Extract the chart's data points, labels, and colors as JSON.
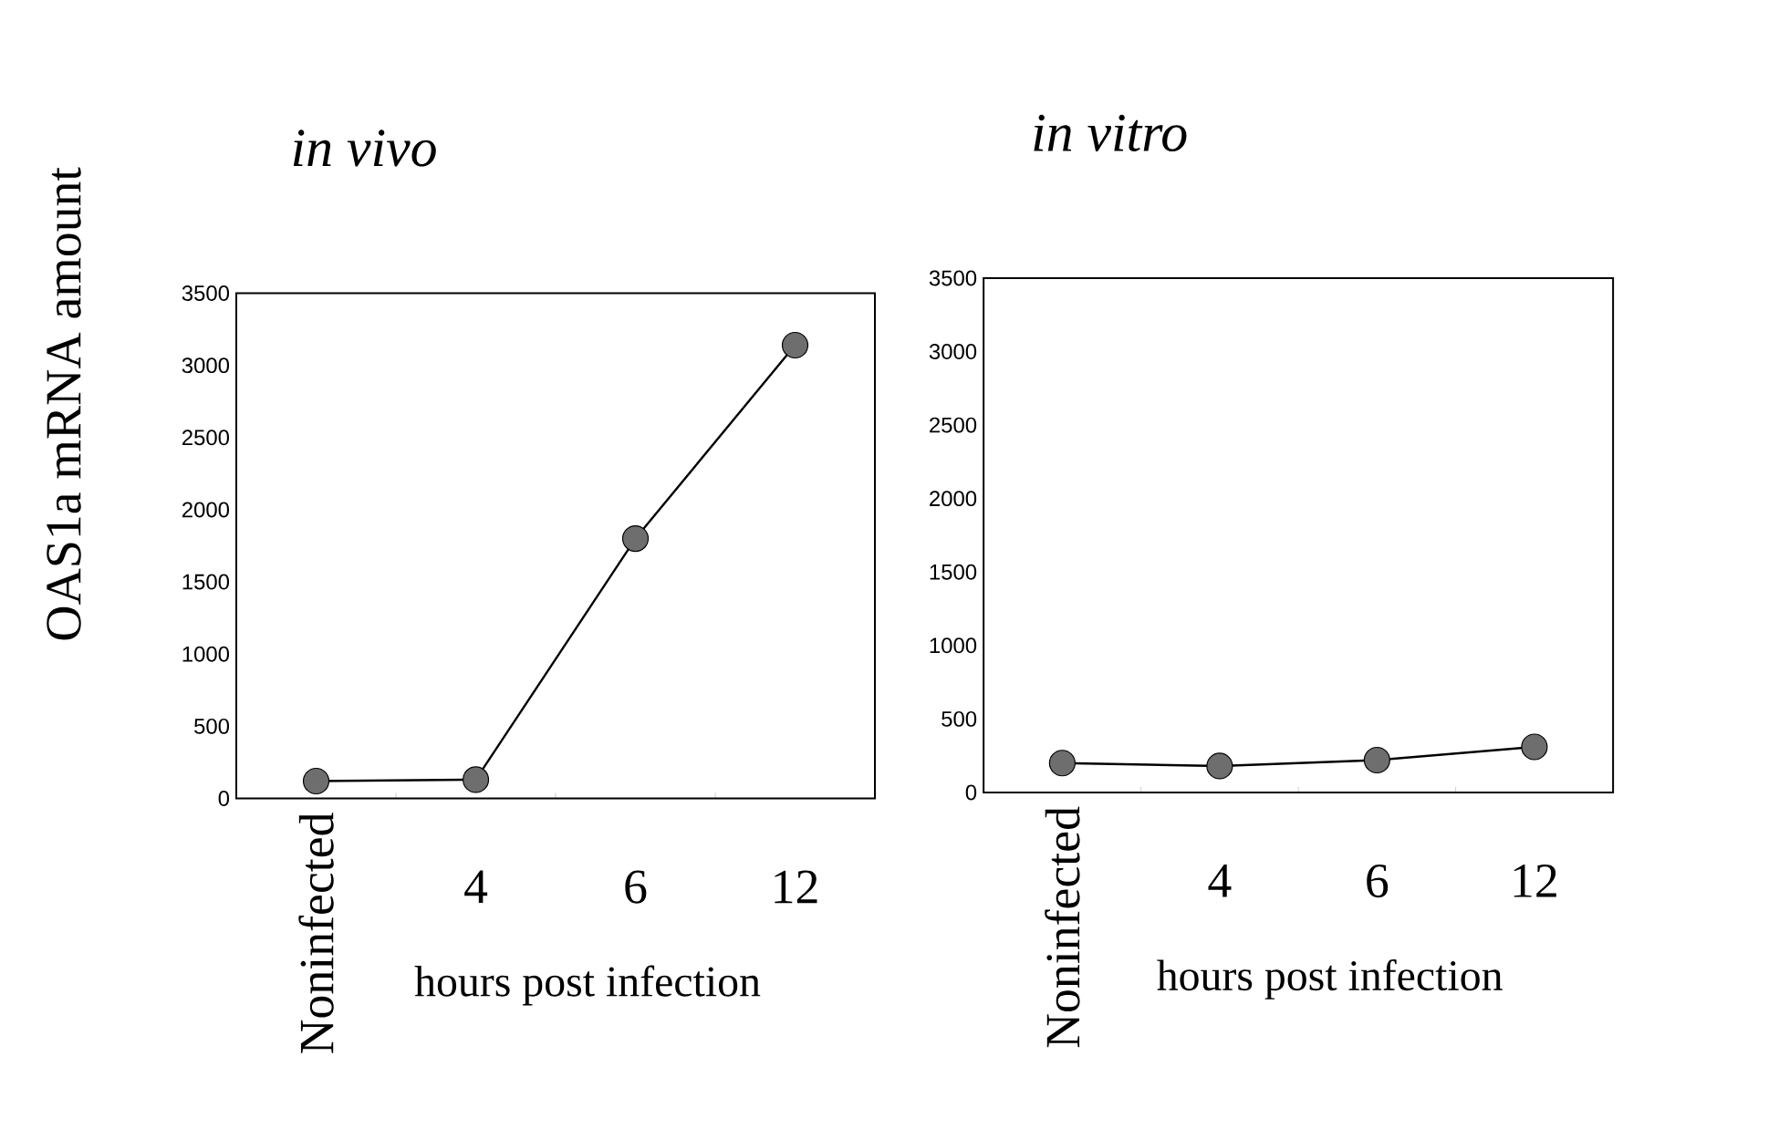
{
  "chart_data": [
    {
      "type": "line",
      "title": "in vivo",
      "xlabel": "hours post infection",
      "ylabel": "OAS1a mRNA amount",
      "categories": [
        "Noninfected",
        "4",
        "6",
        "12"
      ],
      "series": [
        {
          "color": "#6e6e6e",
          "values": [
            120,
            130,
            1800,
            3140
          ]
        }
      ],
      "ylim": [
        0,
        3500
      ],
      "yticks": [
        0,
        500,
        1000,
        1500,
        2000,
        2500,
        3000,
        3500
      ],
      "marker": "circle"
    },
    {
      "type": "line",
      "title": "in vitro",
      "xlabel": "hours post infection",
      "categories": [
        "Noninfected",
        "4",
        "6",
        "12"
      ],
      "series": [
        {
          "color": "#6e6e6e",
          "values": [
            200,
            180,
            220,
            310
          ]
        }
      ],
      "ylim": [
        0,
        3500
      ],
      "yticks": [
        0,
        500,
        1000,
        1500,
        2000,
        2500,
        3000,
        3500
      ],
      "marker": "circle"
    }
  ]
}
